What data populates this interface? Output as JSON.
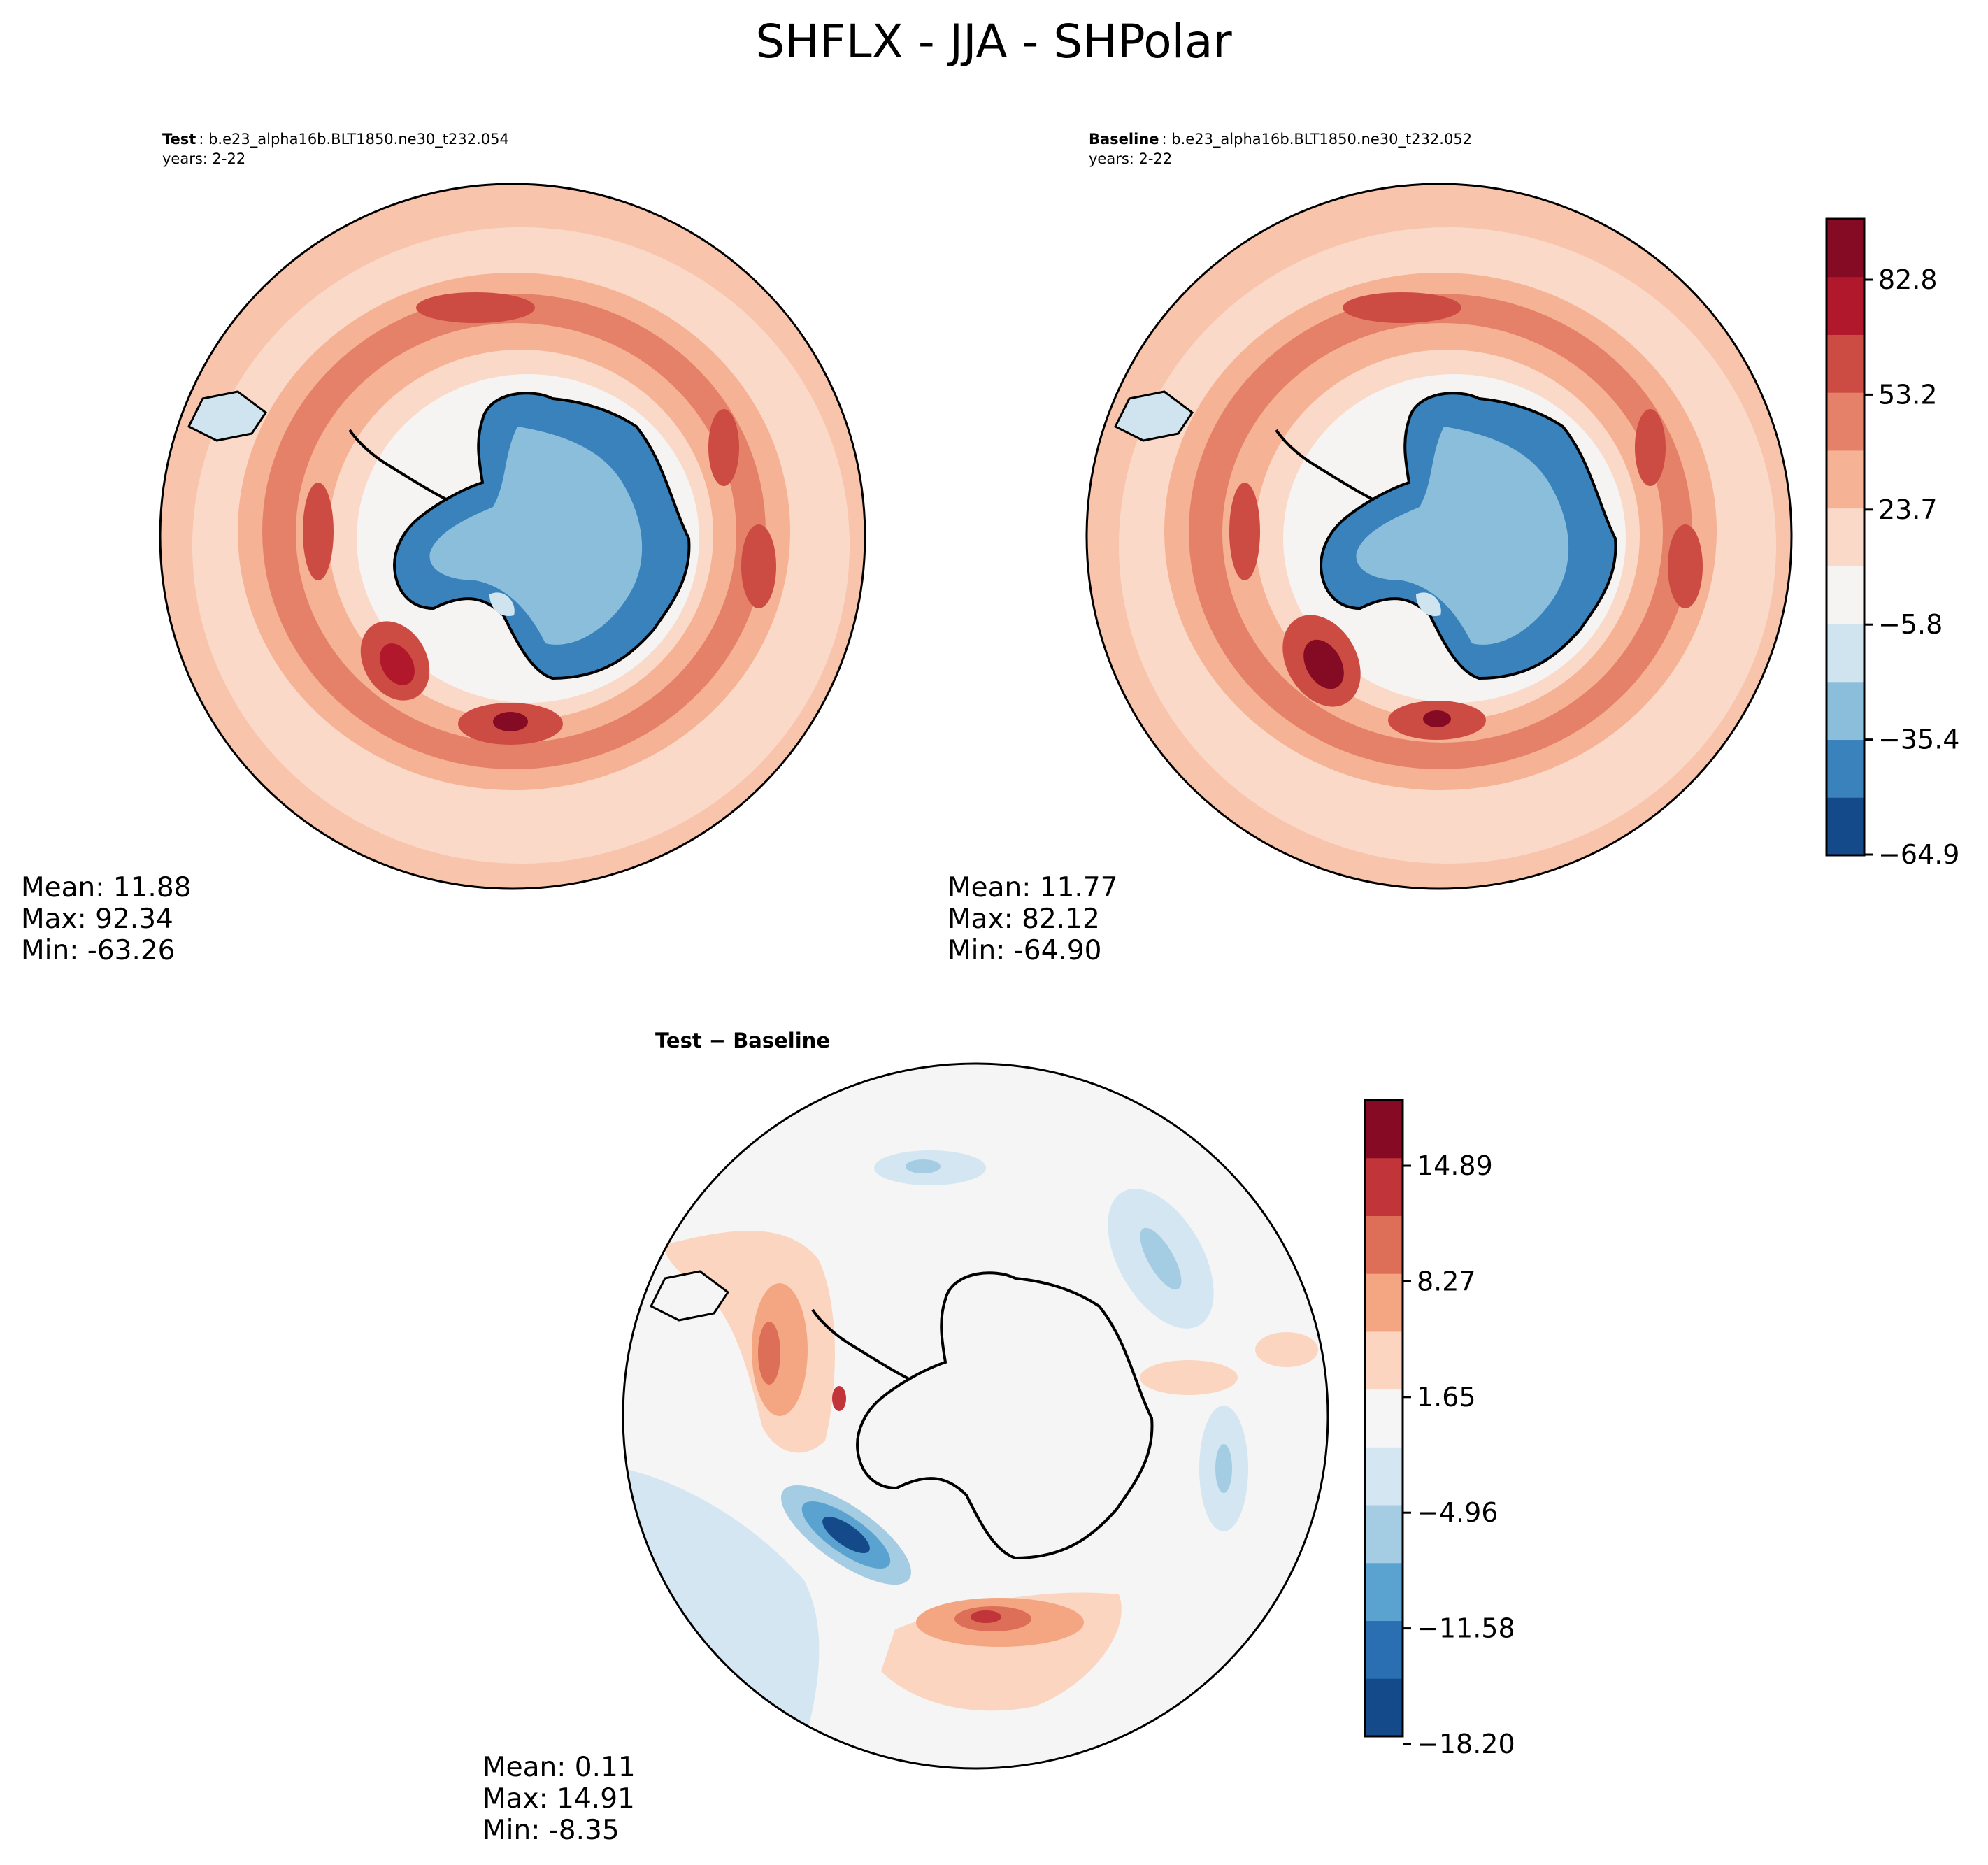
{
  "figure": {
    "title": "SHFLX - JJA - SHPolar"
  },
  "chart_data": [
    {
      "type": "heatmap",
      "panel": "test",
      "projection": "south-polar-stereographic",
      "header_label": "Test",
      "header_case": "b.e23_alpha16b.BLT1850.ne30_t232.054",
      "header_years": "years: 2-22",
      "stats": {
        "mean": "Mean: 11.88",
        "max": "Max: 92.34",
        "min": "Min: -63.26"
      },
      "features": [
        {
          "kind": "continent",
          "name": "Antarctica",
          "value": -40
        },
        {
          "kind": "ring",
          "value": 40
        },
        {
          "kind": "hotspot",
          "value": 85
        }
      ]
    },
    {
      "type": "heatmap",
      "panel": "baseline",
      "projection": "south-polar-stereographic",
      "header_label": "Baseline",
      "header_case": "b.e23_alpha16b.BLT1850.ne30_t232.052",
      "header_years": "years: 2-22",
      "stats": {
        "mean": "Mean: 11.77",
        "max": "Max: 82.12",
        "min": "Min: -64.90"
      },
      "colorbar": {
        "ticks": [
          "82.8",
          "53.2",
          "23.7",
          "−5.8",
          "−35.4",
          "−64.9"
        ],
        "levels": 10,
        "vmin": -64.9,
        "vmax": 97.6,
        "colors": [
          "#154a8a",
          "#3a82bc",
          "#8bbeda",
          "#d0e4ef",
          "#f5f4f3",
          "#fbd9c8",
          "#f5b294",
          "#e58168",
          "#cc4b42",
          "#b2182b",
          "#850a23"
        ]
      }
    },
    {
      "type": "heatmap",
      "panel": "difference",
      "projection": "south-polar-stereographic",
      "header_label": "Test − Baseline",
      "stats": {
        "mean": "Mean:  0.11",
        "max": "Max: 14.91",
        "min": "Min: -8.35"
      },
      "colorbar": {
        "ticks": [
          "14.89",
          "8.27",
          "1.65",
          "−4.96",
          "−11.58",
          "−18.20"
        ],
        "levels": 11,
        "vmin": -18.2,
        "vmax": 18.2,
        "colors": [
          "#154a8a",
          "#2a6fb2",
          "#5aa2cf",
          "#a4cde3",
          "#d4e6f1",
          "#f5f5f5",
          "#fbd5c0",
          "#f4a581",
          "#dd6e57",
          "#c0343a",
          "#870a25"
        ]
      }
    }
  ]
}
